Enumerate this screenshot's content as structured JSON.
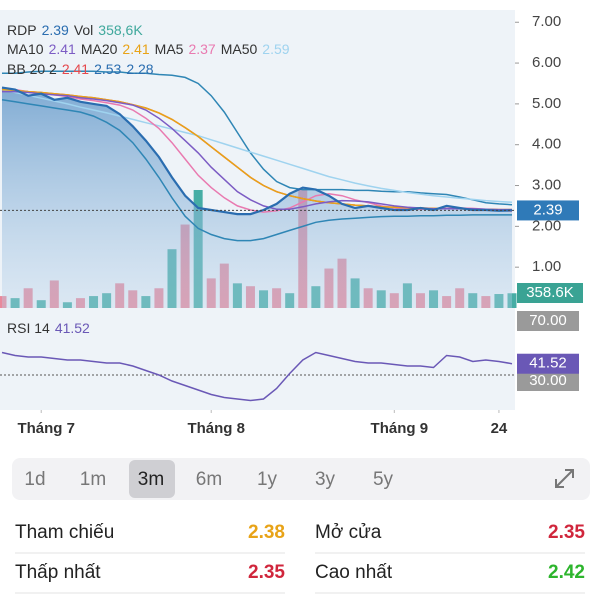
{
  "legend": {
    "symbol": "RDP",
    "vol_label": "Vol",
    "vol_value": "358,6K",
    "bb_label": "BB 20 2"
  },
  "chart_data": {
    "type": "line",
    "ylim": [
      0,
      7.3
    ],
    "yticks": [
      {
        "value": 1,
        "label": "1.00"
      },
      {
        "value": 2,
        "label": "2.00"
      },
      {
        "value": 3,
        "label": "3.00"
      },
      {
        "value": 4,
        "label": "4.00"
      },
      {
        "value": 5,
        "label": "5.00"
      },
      {
        "value": 6,
        "label": "6.00"
      },
      {
        "value": 7,
        "label": "7.00"
      }
    ],
    "xticks": [
      {
        "value": 3,
        "label": "Tháng 7"
      },
      {
        "value": 16,
        "label": "Tháng 8"
      },
      {
        "value": 30,
        "label": "Tháng 9"
      },
      {
        "value": 38,
        "label": "24"
      }
    ],
    "series": [
      {
        "name": "RDP",
        "color": "#2a6db0",
        "values": [
          5.4,
          5.35,
          5.2,
          5.25,
          5.1,
          5.15,
          5.05,
          5,
          4.95,
          4.75,
          4.45,
          4.1,
          3.7,
          3.2,
          2.75,
          2.45,
          2.4,
          2.35,
          2.3,
          2.3,
          2.4,
          2.55,
          2.8,
          2.95,
          2.9,
          2.75,
          2.55,
          2.45,
          2.5,
          2.45,
          2.4,
          2.4,
          2.45,
          2.4,
          2.5,
          2.45,
          2.4,
          2.4,
          2.38,
          2.39
        ]
      },
      {
        "name": "MA10",
        "color": "#7c5cc4",
        "values": [
          5.3,
          5.3,
          5.28,
          5.25,
          5.22,
          5.2,
          5.15,
          5.12,
          5.08,
          5.03,
          4.97,
          4.85,
          4.65,
          4.4,
          4.1,
          3.8,
          3.45,
          3.15,
          2.85,
          2.65,
          2.5,
          2.42,
          2.42,
          2.48,
          2.55,
          2.6,
          2.63,
          2.62,
          2.6,
          2.55,
          2.5,
          2.47,
          2.45,
          2.43,
          2.43,
          2.43,
          2.43,
          2.42,
          2.41,
          2.41
        ]
      },
      {
        "name": "MA20",
        "color": "#e8a317",
        "values": [
          5.35,
          5.33,
          5.3,
          5.28,
          5.25,
          5.22,
          5.18,
          5.15,
          5.1,
          5.05,
          4.98,
          4.9,
          4.78,
          4.62,
          4.42,
          4.2,
          3.95,
          3.7,
          3.45,
          3.2,
          3,
          2.85,
          2.75,
          2.68,
          2.62,
          2.58,
          2.55,
          2.52,
          2.5,
          2.48,
          2.47,
          2.46,
          2.45,
          2.44,
          2.43,
          2.43,
          2.42,
          2.42,
          2.41,
          2.41
        ]
      },
      {
        "name": "MA5",
        "color": "#e97ab0",
        "values": [
          5.35,
          5.35,
          5.3,
          5.27,
          5.22,
          5.18,
          5.12,
          5.08,
          5.03,
          4.97,
          4.85,
          4.65,
          4.4,
          4.05,
          3.65,
          3.25,
          2.95,
          2.7,
          2.5,
          2.4,
          2.35,
          2.38,
          2.45,
          2.6,
          2.75,
          2.8,
          2.75,
          2.65,
          2.58,
          2.5,
          2.45,
          2.42,
          2.42,
          2.42,
          2.44,
          2.45,
          2.44,
          2.42,
          2.4,
          2.37
        ]
      },
      {
        "name": "MA50",
        "color": "#9fd3ef",
        "values": [
          5.35,
          5.28,
          5.21,
          5.14,
          5.07,
          5,
          4.92,
          4.85,
          4.78,
          4.7,
          4.62,
          4.54,
          4.46,
          4.38,
          4.3,
          4.22,
          4.12,
          4.02,
          3.92,
          3.82,
          3.72,
          3.62,
          3.52,
          3.42,
          3.32,
          3.22,
          3.14,
          3.06,
          2.99,
          2.93,
          2.88,
          2.83,
          2.79,
          2.75,
          2.72,
          2.69,
          2.66,
          2.63,
          2.61,
          2.59
        ]
      }
    ],
    "bands": {
      "mid_color": "#e5484d",
      "edge_color": "#2f86b5",
      "mid": [
        5.35,
        5.33,
        5.3,
        5.28,
        5.25,
        5.22,
        5.18,
        5.15,
        5.1,
        5.05,
        4.98,
        4.9,
        4.78,
        4.62,
        4.42,
        4.2,
        3.95,
        3.7,
        3.45,
        3.2,
        3,
        2.85,
        2.75,
        2.68,
        2.62,
        2.58,
        2.55,
        2.52,
        2.5,
        2.48,
        2.47,
        2.46,
        2.45,
        2.44,
        2.43,
        2.43,
        2.42,
        2.42,
        2.41,
        2.41
      ],
      "upper": [
        5.75,
        5.75,
        5.78,
        5.8,
        5.8,
        5.8,
        5.8,
        5.8,
        5.78,
        5.78,
        5.75,
        5.75,
        5.72,
        5.7,
        5.65,
        5.5,
        5.2,
        4.8,
        4.3,
        3.8,
        3.4,
        3.1,
        2.95,
        2.9,
        2.9,
        2.9,
        2.9,
        2.88,
        2.88,
        2.86,
        2.85,
        2.85,
        2.82,
        2.8,
        2.78,
        2.72,
        2.65,
        2.58,
        2.55,
        2.53
      ],
      "lower": [
        5.1,
        5.05,
        5,
        4.95,
        4.9,
        4.85,
        4.8,
        4.7,
        4.55,
        4.35,
        4.05,
        3.65,
        3.2,
        2.7,
        2.25,
        1.95,
        1.8,
        1.7,
        1.65,
        1.65,
        1.7,
        1.8,
        1.9,
        2,
        2.1,
        2.15,
        2.18,
        2.2,
        2.22,
        2.24,
        2.25,
        2.25,
        2.26,
        2.26,
        2.27,
        2.27,
        2.28,
        2.28,
        2.28,
        2.28
      ]
    },
    "volume": {
      "values": [
        290000,
        240000,
        480000,
        190000,
        670000,
        140000,
        240000,
        290000,
        360000,
        600000,
        430000,
        290000,
        480000,
        1430000,
        2030000,
        2870000,
        720000,
        1080000,
        600000,
        530000,
        430000,
        480000,
        360000,
        2870000,
        530000,
        960000,
        1200000,
        720000,
        480000,
        430000,
        360000,
        600000,
        360000,
        430000,
        290000,
        480000,
        360000,
        290000,
        340000,
        358600
      ],
      "value_labels_last": "358.6K",
      "colors": [
        "#e8899c",
        "#46ada5",
        "#e8899c",
        "#46ada5",
        "#e8899c",
        "#46ada5",
        "#e8899c",
        "#46ada5",
        "#46ada5",
        "#e8899c",
        "#e8899c",
        "#46ada5",
        "#e8899c",
        "#46ada5",
        "#e8899c",
        "#46ada5",
        "#e8899c",
        "#e8899c",
        "#46ada5",
        "#e8899c",
        "#46ada5",
        "#e8899c",
        "#46ada5",
        "#e8899c",
        "#46ada5",
        "#e8899c",
        "#e8899c",
        "#46ada5",
        "#e8899c",
        "#46ada5",
        "#e8899c",
        "#46ada5",
        "#e8899c",
        "#46ada5",
        "#e8899c",
        "#e8899c",
        "#46ada5",
        "#e8899c",
        "#46ada5",
        "#46ada5"
      ]
    },
    "rsi": {
      "name": "RSI 14",
      "color": "#6a58b6",
      "ylim": [
        12,
        70
      ],
      "levels": [
        {
          "value": 70,
          "label": "70.00"
        },
        {
          "value": 30,
          "label": "30.00"
        }
      ],
      "values": [
        49,
        47,
        46,
        46,
        45,
        44,
        44,
        43,
        42,
        42,
        40,
        37,
        34,
        30,
        27,
        24,
        21,
        19,
        18,
        17,
        18,
        25,
        35,
        44,
        49,
        47,
        45,
        43,
        42,
        42,
        41,
        40,
        40,
        39,
        47,
        46,
        43,
        44,
        43,
        41.52
      ]
    }
  },
  "periods": {
    "items": [
      "1d",
      "1m",
      "3m",
      "6m",
      "1y",
      "3y",
      "5y"
    ],
    "selected": 2
  },
  "stats": [
    {
      "label": "Tham chiếu",
      "value": 2.38,
      "color": "#e8a317"
    },
    {
      "label": "Mở cửa",
      "value": 2.35,
      "color": "#d0263c"
    },
    {
      "label": "Thấp nhất",
      "value": 2.35,
      "color": "#d0263c"
    },
    {
      "label": "Cao nhất",
      "value": 2.42,
      "color": "#2db52d"
    }
  ]
}
